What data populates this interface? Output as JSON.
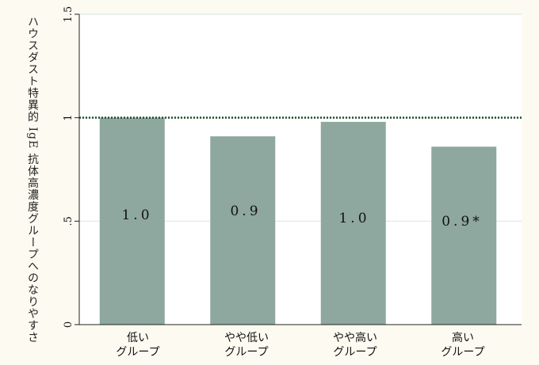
{
  "chart_data": {
    "type": "bar",
    "categories": [
      {
        "line1": "低い",
        "line2": "グループ"
      },
      {
        "line1": "やや低い",
        "line2": "グループ"
      },
      {
        "line1": "やや高い",
        "line2": "グループ"
      },
      {
        "line1": "高い",
        "line2": "グループ"
      }
    ],
    "values": [
      1.0,
      0.91,
      0.98,
      0.86
    ],
    "value_labels": [
      "1.0",
      "0.9",
      "1.0",
      "0.9*"
    ],
    "ylabel": "ハウスダスト特異的 IgE 抗体高濃度グループへのなりやすさ",
    "ylim": [
      0,
      1.5
    ],
    "yticks": [
      0,
      0.5,
      1,
      1.5
    ],
    "ytick_labels": [
      "0",
      ".5",
      "1",
      "1.5"
    ],
    "reference_line": 1,
    "grid": true,
    "colors": {
      "bar": "#8ea79f",
      "reference": "#1e4a2a",
      "grid": "#dde9e6",
      "plot_bg": "#ffffff",
      "page_bg": "#fdfbf1"
    }
  }
}
